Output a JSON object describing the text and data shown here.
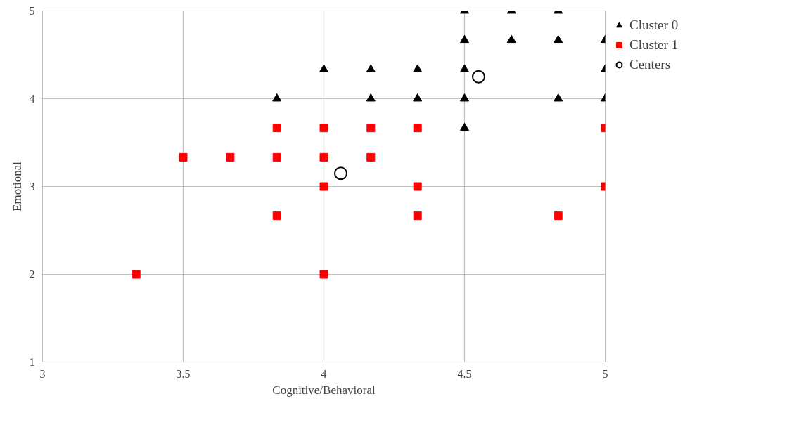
{
  "chart_data": {
    "type": "scatter",
    "xlabel": "Cognitive/Behavioral",
    "ylabel": "Emotional",
    "xlim": [
      3,
      5
    ],
    "ylim": [
      1,
      5
    ],
    "xticks": [
      3,
      3.5,
      4,
      4.5,
      5
    ],
    "yticks": [
      1,
      2,
      3,
      4,
      5
    ],
    "grid": true,
    "legend": "top right",
    "series": [
      {
        "name": "Cluster 0",
        "color": "#000000",
        "marker": "triangle",
        "x": [
          4.5,
          4.667,
          4.833,
          4.5,
          4.667,
          4.833,
          5,
          4,
          4.167,
          4.333,
          4.5,
          5,
          3.833,
          4.167,
          4.333,
          4.5,
          4.833,
          5,
          4.5
        ],
        "values": [
          5,
          5,
          5,
          4.667,
          4.667,
          4.667,
          4.667,
          4.333,
          4.333,
          4.333,
          4.333,
          4.333,
          4,
          4,
          4,
          4,
          4,
          4,
          3.667
        ]
      },
      {
        "name": "Cluster 1",
        "color": "#ff0000",
        "marker": "square",
        "x": [
          3.833,
          4,
          4.167,
          4.333,
          5,
          3.5,
          3.667,
          3.833,
          4,
          4.167,
          4,
          4.333,
          5,
          3.833,
          4.333,
          4.833,
          3.333,
          4
        ],
        "values": [
          3.667,
          3.667,
          3.667,
          3.667,
          3.667,
          3.333,
          3.333,
          3.333,
          3.333,
          3.333,
          3,
          3,
          3,
          2.667,
          2.667,
          2.667,
          2,
          2
        ]
      },
      {
        "name": "Centers",
        "color": "#000000",
        "marker": "circle",
        "x": [
          4.55,
          4.06
        ],
        "values": [
          4.25,
          3.15
        ]
      }
    ]
  }
}
